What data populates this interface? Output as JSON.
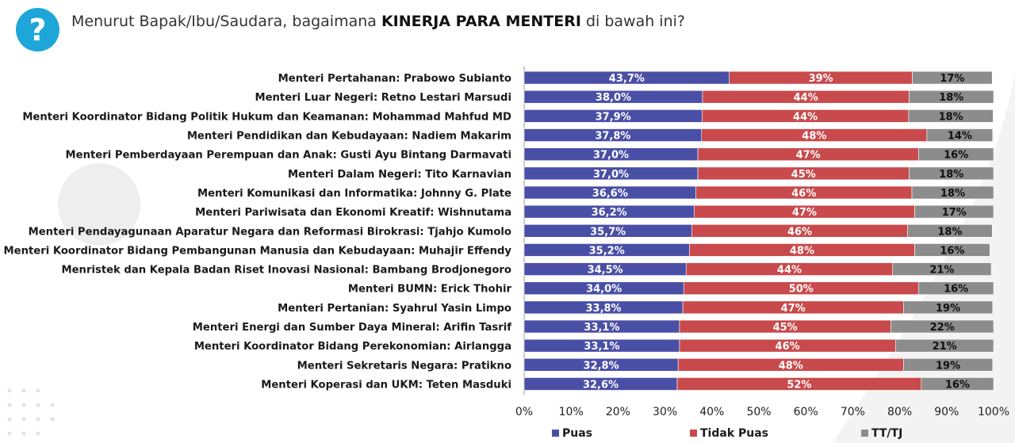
{
  "header": {
    "icon": "question-icon",
    "icon_glyph": "?",
    "question_prefix": "Menurut Bapak/Ibu/Saudara, bagaimana ",
    "question_bold": "KINERJA PARA MENTERI",
    "question_suffix": " di bawah ini?"
  },
  "colors": {
    "puas": "#4a4fa6",
    "tidak_puas": "#c94a4c",
    "tt_tj": "#8c8c8c",
    "accent": "#1fa6d9"
  },
  "chart_data": {
    "type": "bar",
    "orientation": "horizontal",
    "stacked": true,
    "categories": [
      "Menteri Pertahanan: Prabowo Subianto",
      "Menteri Luar Negeri: Retno Lestari Marsudi",
      "Menteri Koordinator Bidang Politik Hukum dan Keamanan: Mohammad Mahfud MD",
      "Menteri Pendidikan dan Kebudayaan: Nadiem Makarim",
      "Menteri Pemberdayaan Perempuan dan Anak: Gusti Ayu Bintang Darmavati",
      "Menteri Dalam Negeri: Tito Karnavian",
      "Menteri Komunikasi dan Informatika: Johnny G. Plate",
      "Menteri Pariwisata dan Ekonomi Kreatif: Wishnutama",
      "Menteri Pendayagunaan Aparatur Negara dan Reformasi Birokrasi: Tjahjo Kumolo",
      "Menteri Koordinator Bidang Pembangunan Manusia dan Kebudayaan: Muhajir Effendy",
      "Menristek dan Kepala Badan Riset Inovasi Nasional: Bambang Brodjonegoro",
      "Menteri BUMN: Erick Thohir",
      "Menteri Pertanian: Syahrul Yasin Limpo",
      "Menteri Energi dan Sumber Daya Mineral: Arifin Tasrif",
      "Menteri Koordinator Bidang Perekonomian: Airlangga",
      "Menteri Sekretaris Negara: Pratikno",
      "Menteri Koperasi dan UKM: Teten Masduki"
    ],
    "series": [
      {
        "name": "Puas",
        "values": [
          43.7,
          38.0,
          37.9,
          37.8,
          37.0,
          37.0,
          36.6,
          36.2,
          35.7,
          35.2,
          34.5,
          34.0,
          33.8,
          33.1,
          33.1,
          32.8,
          32.6
        ],
        "labels": [
          "43,7%",
          "38,0%",
          "37,9%",
          "37,8%",
          "37,0%",
          "37,0%",
          "36,6%",
          "36,2%",
          "35,7%",
          "35,2%",
          "34,5%",
          "34,0%",
          "33,8%",
          "33,1%",
          "33,1%",
          "32,8%",
          "32,6%"
        ]
      },
      {
        "name": "Tidak Puas",
        "values": [
          39,
          44,
          44,
          48,
          47,
          45,
          46,
          47,
          46,
          48,
          44,
          50,
          47,
          45,
          46,
          48,
          52
        ],
        "labels": [
          "39%",
          "44%",
          "44%",
          "48%",
          "47%",
          "45%",
          "46%",
          "47%",
          "46%",
          "48%",
          "44%",
          "50%",
          "47%",
          "45%",
          "46%",
          "48%",
          "52%"
        ]
      },
      {
        "name": "TT/TJ",
        "values": [
          17,
          18,
          18,
          14,
          16,
          18,
          18,
          17,
          18,
          16,
          21,
          16,
          19,
          22,
          21,
          19,
          16
        ],
        "labels": [
          "17%",
          "18%",
          "18%",
          "14%",
          "16%",
          "18%",
          "18%",
          "17%",
          "18%",
          "16%",
          "21%",
          "16%",
          "19%",
          "22%",
          "21%",
          "19%",
          "16%"
        ]
      }
    ],
    "xlim": [
      0,
      100
    ],
    "xticks": [
      "0%",
      "10%",
      "20%",
      "30%",
      "40%",
      "50%",
      "60%",
      "70%",
      "80%",
      "90%",
      "100%"
    ],
    "legend": [
      "Puas",
      "Tidak Puas",
      "TT/TJ"
    ],
    "legend_position": "bottom"
  }
}
